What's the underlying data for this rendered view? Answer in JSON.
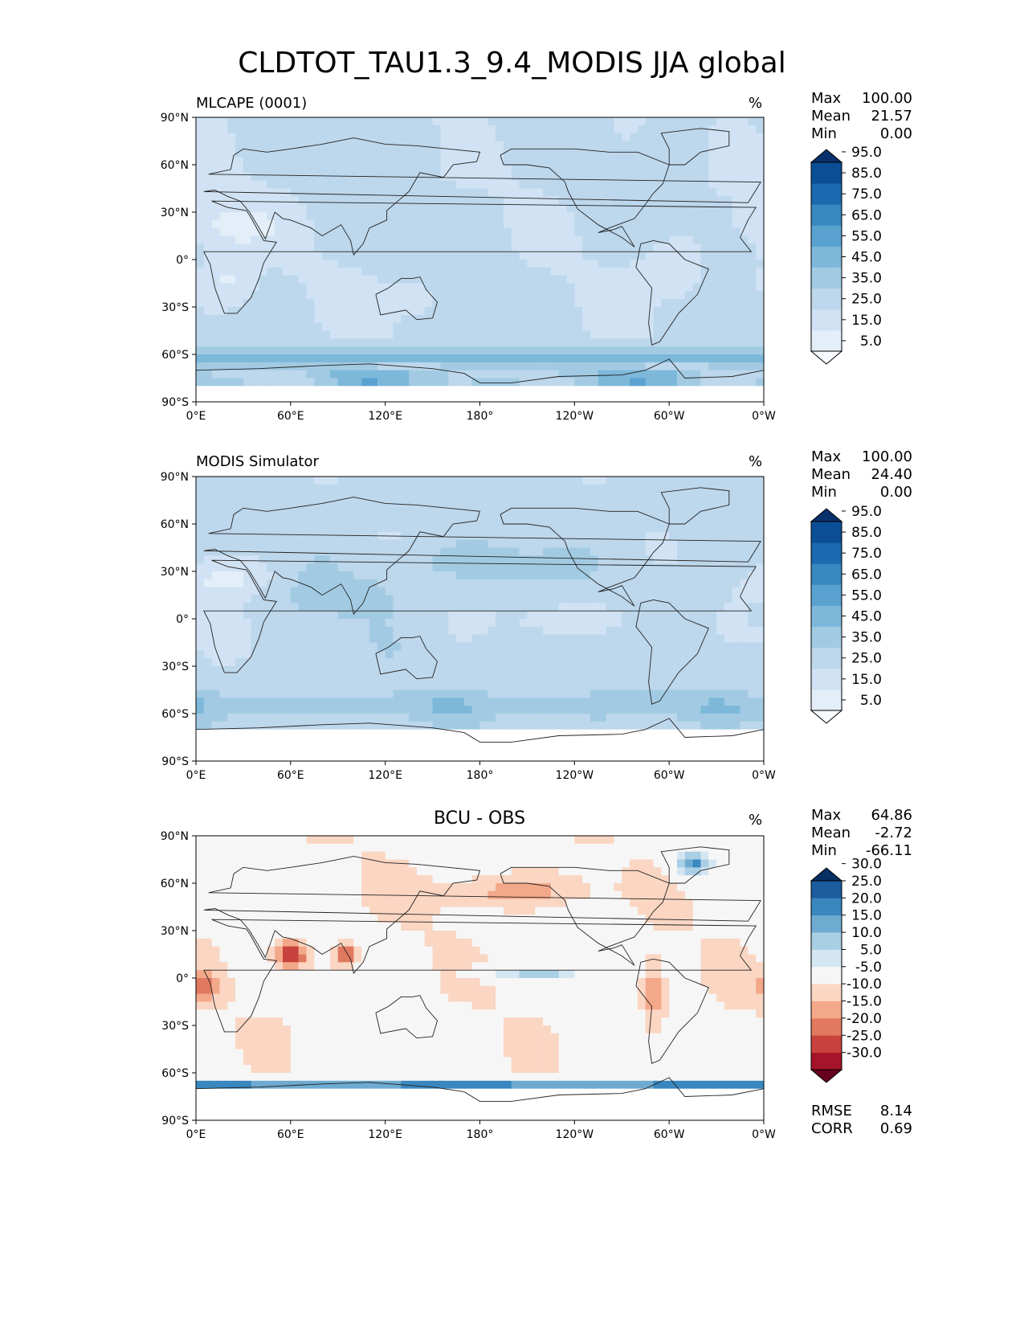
{
  "title": "CLDTOT_TAU1.3_9.4_MODIS JJA global",
  "colors": {
    "blues": [
      "#f7fbff",
      "#e3eef9",
      "#d0e2f3",
      "#bdd7ec",
      "#a2cbe3",
      "#7db8da",
      "#59a2cf",
      "#3888c1",
      "#1b69af",
      "#0b4e95",
      "#08306b"
    ],
    "rdbu": [
      "#67001f",
      "#a51429",
      "#c8433d",
      "#e0795f",
      "#f4a88a",
      "#fad6c3",
      "#f6f6f6",
      "#d4e6f1",
      "#a8cfe4",
      "#6fabd0",
      "#3987bf",
      "#1b5d9f",
      "#053061"
    ],
    "coast": "#222222"
  },
  "icons": [
    "colorbar-top-arrow-icon",
    "colorbar-bottom-arrow-icon"
  ],
  "chart_data": [
    {
      "type": "heatmap",
      "title": "MLCAPE (0001)",
      "units": "%",
      "xlabel": "",
      "ylabel": "",
      "x_ticks": [
        "0°E",
        "60°E",
        "120°E",
        "180°",
        "120°W",
        "60°W",
        "0°W"
      ],
      "y_ticks": [
        "90°N",
        "60°N",
        "30°N",
        "0°",
        "30°S",
        "60°S",
        "90°S"
      ],
      "stats": {
        "max_label": "Max",
        "max": "100.00",
        "mean_label": "Mean",
        "mean": "21.57",
        "min_label": "Min",
        "min": "0.00"
      },
      "colorbar": {
        "palette": "blues",
        "levels": [
          0,
          10,
          20,
          30,
          40,
          50,
          60,
          70,
          80,
          90,
          100
        ],
        "labels": [
          "5.0",
          "15.0",
          "25.0",
          "35.0",
          "45.0",
          "55.0",
          "65.0",
          "75.0",
          "85.0",
          "95.0"
        ],
        "extend": "both"
      }
    },
    {
      "type": "heatmap",
      "title": "MODIS Simulator",
      "units": "%",
      "xlabel": "",
      "ylabel": "",
      "x_ticks": [
        "0°E",
        "60°E",
        "120°E",
        "180°",
        "120°W",
        "60°W",
        "0°W"
      ],
      "y_ticks": [
        "90°N",
        "60°N",
        "30°N",
        "0°",
        "30°S",
        "60°S",
        "90°S"
      ],
      "stats": {
        "max_label": "Max",
        "max": "100.00",
        "mean_label": "Mean",
        "mean": "24.40",
        "min_label": "Min",
        "min": "0.00"
      },
      "colorbar": {
        "palette": "blues",
        "levels": [
          0,
          10,
          20,
          30,
          40,
          50,
          60,
          70,
          80,
          90,
          100
        ],
        "labels": [
          "5.0",
          "15.0",
          "25.0",
          "35.0",
          "45.0",
          "55.0",
          "65.0",
          "75.0",
          "85.0",
          "95.0"
        ],
        "extend": "both"
      }
    },
    {
      "type": "heatmap",
      "title": "BCU - OBS",
      "units": "%",
      "xlabel": "",
      "ylabel": "",
      "x_ticks": [
        "0°E",
        "60°E",
        "120°E",
        "180°",
        "120°W",
        "60°W",
        "0°W"
      ],
      "y_ticks": [
        "90°N",
        "60°N",
        "30°N",
        "0°",
        "30°S",
        "60°S",
        "90°S"
      ],
      "stats": {
        "max_label": "Max",
        "max": "64.86",
        "mean_label": "Mean",
        "mean": "-2.72",
        "min_label": "Min",
        "min": "-66.11"
      },
      "metrics": {
        "rmse_label": "RMSE",
        "rmse": "8.14",
        "corr_label": "CORR",
        "corr": "0.69"
      },
      "colorbar": {
        "palette": "rdbu",
        "levels": [
          -30,
          -25,
          -20,
          -15,
          -10,
          -5,
          5,
          10,
          15,
          20,
          25,
          30
        ],
        "labels": [
          "-30.0",
          "-25.0",
          "-20.0",
          "-15.0",
          "-10.0",
          "-5.0",
          "5.0",
          "10.0",
          "15.0",
          "20.0",
          "25.0",
          "30.0"
        ],
        "extend": "both"
      }
    }
  ]
}
